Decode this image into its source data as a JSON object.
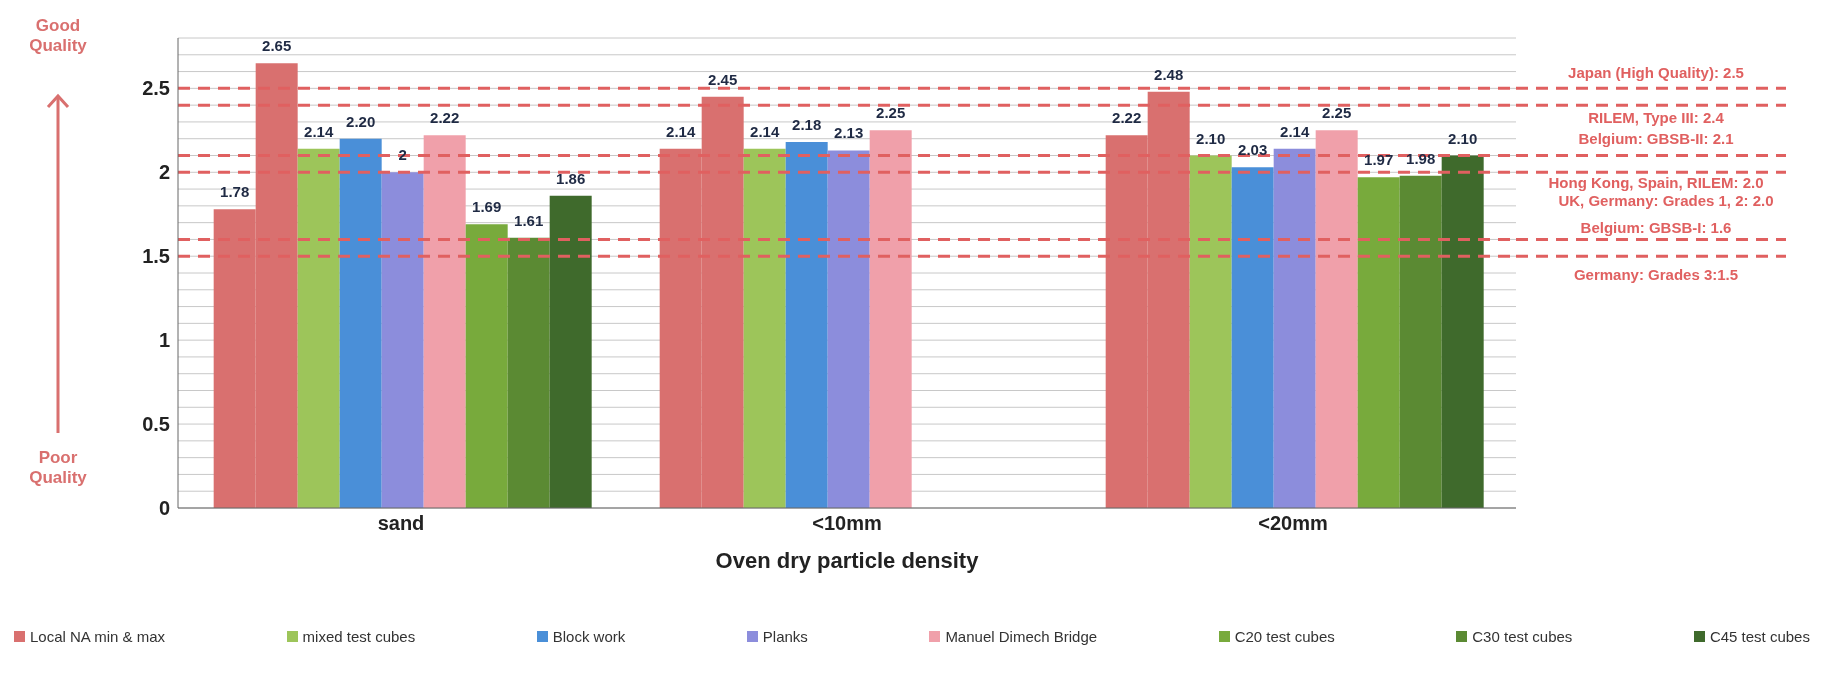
{
  "chart_data": {
    "type": "bar",
    "xlabel": "Oven dry particle density",
    "categories": [
      "sand",
      "<10mm",
      "<20mm"
    ],
    "ylim": [
      0,
      2.8
    ],
    "yticks": [
      0,
      {
        "value": 0.1,
        "label": null
      },
      {
        "value": 0.2,
        "label": null
      },
      {
        "value": 0.3,
        "label": null
      },
      {
        "value": 0.4,
        "label": null
      },
      0.5,
      {
        "value": 0.6,
        "label": null
      },
      {
        "value": 0.7,
        "label": null
      },
      {
        "value": 0.8,
        "label": null
      },
      {
        "value": 0.9,
        "label": null
      },
      1,
      {
        "value": 1.1,
        "label": null
      },
      {
        "value": 1.2,
        "label": null
      },
      {
        "value": 1.3,
        "label": null
      },
      {
        "value": 1.4,
        "label": null
      },
      1.5,
      {
        "value": 1.6,
        "label": null
      },
      {
        "value": 1.7,
        "label": null
      },
      {
        "value": 1.8,
        "label": null
      },
      {
        "value": 1.9,
        "label": null
      },
      2,
      {
        "value": 2.1,
        "label": null
      },
      {
        "value": 2.2,
        "label": null
      },
      {
        "value": 2.3,
        "label": null
      },
      {
        "value": 2.4,
        "label": null
      },
      2.5,
      {
        "value": 2.6,
        "label": null
      },
      {
        "value": 2.7,
        "label": null
      },
      {
        "value": 2.8,
        "label": null
      }
    ],
    "grid": "y",
    "legend": "bottom",
    "series": [
      {
        "name": "Local NA min & max",
        "color": "#d9706f",
        "values": [
          1.78,
          2.14,
          2.22
        ],
        "value_labels": [
          "1.78",
          "2.14",
          "2.22"
        ]
      },
      {
        "color": "#d9706f",
        "values": [
          2.65,
          2.45,
          2.48
        ],
        "value_labels": [
          "2.65",
          "2.45",
          "2.48"
        ]
      },
      {
        "name": "mixed test cubes",
        "color": "#9dc55a",
        "values": [
          2.14,
          2.14,
          2.1
        ],
        "value_labels": [
          "2.14",
          "2.14",
          "2.10"
        ]
      },
      {
        "name": "Block work",
        "color": "#4a8fd8",
        "values": [
          2.2,
          2.18,
          2.03
        ],
        "value_labels": [
          "2.20",
          "2.18",
          "2.03"
        ]
      },
      {
        "name": "Planks",
        "color": "#8c8ddc",
        "values": [
          2.0,
          2.13,
          2.14
        ],
        "value_labels": [
          "2",
          "2.13",
          "2.14"
        ]
      },
      {
        "name": "Manuel Dimech Bridge",
        "color": "#f0a0aa",
        "values": [
          2.22,
          2.25,
          2.25
        ],
        "value_labels": [
          "2.22",
          "2.25",
          "2.25"
        ]
      },
      {
        "name": "C20 test cubes",
        "color": "#78aa3c",
        "values": [
          1.69,
          null,
          1.97
        ],
        "value_labels": [
          "1.69",
          null,
          "1.97"
        ]
      },
      {
        "name": "C30 test cubes",
        "color": "#5b8a33",
        "values": [
          1.61,
          null,
          1.98
        ],
        "value_labels": [
          "1.61",
          null,
          "1.98"
        ]
      },
      {
        "name": "C45 test cubes",
        "color": "#3f6a2c",
        "values": [
          1.86,
          null,
          2.1
        ],
        "value_labels": [
          "1.86",
          null,
          "2.10"
        ]
      }
    ],
    "ref_lines": [
      {
        "axis": "y",
        "value": 2.5,
        "label": "Japan (High Quality): 2.5",
        "color": "#e06060",
        "line_style": "dashed"
      },
      {
        "axis": "y",
        "value": 2.4,
        "label": "RILEM, Type III: 2.4",
        "color": "#e06060",
        "line_style": "dashed"
      },
      {
        "axis": "y",
        "value": 2.1,
        "label": "Belgium: GBSB-II: 2.1",
        "color": "#e06060",
        "line_style": "dashed"
      },
      {
        "axis": "y",
        "value": 2.0,
        "label": "Hong Kong, Spain, RILEM: 2.0",
        "color": "#e06060",
        "line_style": "dashed"
      },
      {
        "axis": "y",
        "value": 1.6,
        "label": "Belgium: GBSB-I: 1.6",
        "color": "#e06060",
        "line_style": "dashed"
      },
      {
        "axis": "y",
        "value": 1.5,
        "label": "Germany: Grades 3:1.5",
        "color": "#e06060",
        "line_style": "dashed"
      }
    ],
    "annotations": [
      "Good Quality",
      "Poor Quality",
      {
        "text": "UK, Germany: Grades 1, 2: 2.0",
        "y": 2.0
      }
    ]
  }
}
